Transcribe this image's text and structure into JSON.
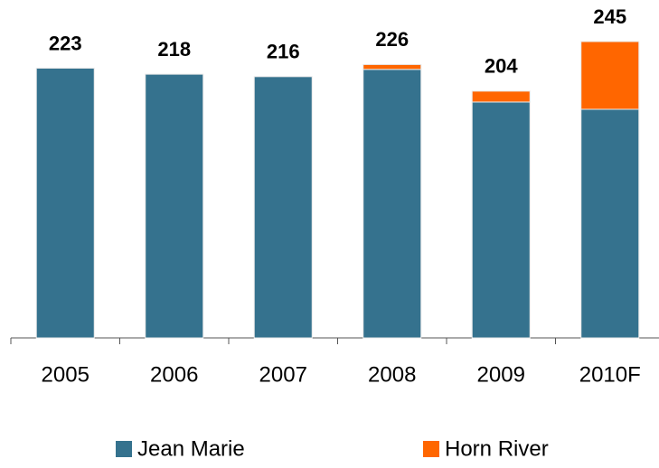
{
  "chart_data": {
    "type": "bar",
    "stacked": true,
    "categories": [
      "2005",
      "2006",
      "2007",
      "2008",
      "2009",
      "2010F"
    ],
    "series": [
      {
        "name": "Jean Marie",
        "color": "#35728e",
        "values": [
          223,
          218,
          216,
          222,
          195,
          189
        ]
      },
      {
        "name": "Horn River",
        "color": "#ff6600",
        "values": [
          0,
          0,
          0,
          4,
          9,
          56
        ]
      }
    ],
    "totals": [
      223,
      218,
      216,
      226,
      204,
      245
    ]
  }
}
